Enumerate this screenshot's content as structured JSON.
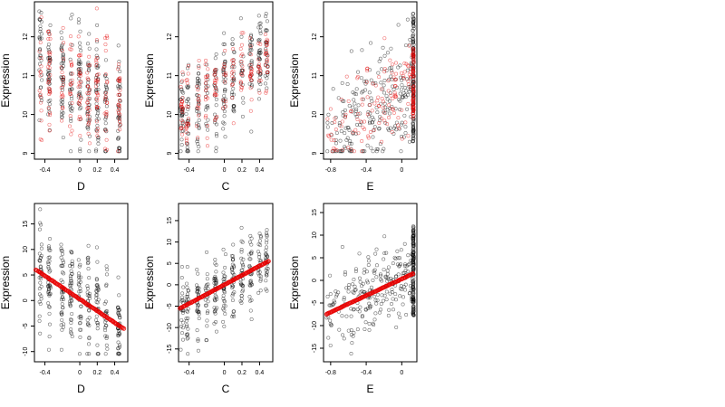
{
  "chart_data": [
    {
      "type": "scatter",
      "xlabel": "D",
      "ylabel": "Expression",
      "xlim": [
        -0.52,
        0.55
      ],
      "ylim": [
        8.85,
        12.9
      ],
      "xticks": [
        -0.4,
        0.0,
        0.2,
        0.4
      ],
      "yticks": [
        9,
        10,
        11,
        12
      ],
      "black_cloud": {
        "n": 300,
        "x_range": [
          -0.5,
          0.5
        ],
        "x_clusters": [
          -0.45,
          -0.35,
          -0.2,
          -0.1,
          0.0,
          0.1,
          0.2,
          0.3,
          0.45
        ],
        "line": [
          11.4,
          10.0
        ],
        "spread": 0.75
      },
      "red_cloud": {
        "n": 200,
        "x_range": [
          -0.5,
          0.5
        ],
        "x_clusters": [
          -0.45,
          -0.35,
          -0.2,
          -0.1,
          0.0,
          0.1,
          0.2,
          0.3,
          0.45
        ],
        "line": [
          11.2,
          10.1
        ],
        "spread": 0.7
      }
    },
    {
      "type": "scatter",
      "xlabel": "C",
      "ylabel": "Expression",
      "xlim": [
        -0.52,
        0.55
      ],
      "ylim": [
        8.85,
        12.9
      ],
      "xticks": [
        -0.4,
        0.0,
        0.2,
        0.4
      ],
      "yticks": [
        9,
        10,
        11,
        12
      ],
      "black_cloud": {
        "n": 300,
        "x_range": [
          -0.5,
          0.5
        ],
        "x_clusters": [
          -0.48,
          -0.42,
          -0.3,
          -0.2,
          -0.1,
          0.0,
          0.1,
          0.2,
          0.3,
          0.4,
          0.48
        ],
        "line": [
          9.9,
          11.6
        ],
        "spread": 0.6
      },
      "red_cloud": {
        "n": 180,
        "x_range": [
          -0.5,
          0.5
        ],
        "x_clusters": [
          -0.48,
          -0.42,
          -0.3,
          -0.2,
          -0.1,
          0.0,
          0.1,
          0.2,
          0.3,
          0.4,
          0.48
        ],
        "line": [
          10.1,
          11.4
        ],
        "spread": 0.5
      }
    },
    {
      "type": "scatter",
      "xlabel": "E",
      "ylabel": "Expression",
      "xlim": [
        -0.88,
        0.17
      ],
      "ylim": [
        8.85,
        12.9
      ],
      "xticks": [
        -0.8,
        -0.4,
        0.0
      ],
      "yticks": [
        9,
        10,
        11,
        12
      ],
      "black_cloud": {
        "n": 220,
        "x_range": [
          -0.85,
          0.13
        ],
        "x_clusters": [],
        "line": [
          9.4,
          10.8
        ],
        "spread": 0.7,
        "dense_column": {
          "x": 0.13,
          "y_range": [
            9.3,
            12.6
          ],
          "n": 120
        }
      },
      "red_cloud": {
        "n": 130,
        "x_range": [
          -0.85,
          0.13
        ],
        "x_clusters": [],
        "line": [
          9.6,
          10.9
        ],
        "spread": 0.55,
        "dense_column": {
          "x": 0.13,
          "y_range": [
            9.9,
            11.7
          ],
          "n": 80
        }
      }
    },
    {
      "type": "scatter",
      "xlabel": "D",
      "ylabel": "Expression",
      "xlim": [
        -0.52,
        0.55
      ],
      "ylim": [
        -12,
        19
      ],
      "xticks": [
        -0.4,
        0.0,
        0.2,
        0.4
      ],
      "yticks": [
        -10,
        -5,
        0,
        5,
        10,
        15
      ],
      "black_cloud": {
        "n": 320,
        "x_range": [
          -0.5,
          0.5
        ],
        "x_clusters": [
          -0.45,
          -0.35,
          -0.2,
          -0.1,
          0.0,
          0.1,
          0.2,
          0.3,
          0.45
        ],
        "line": [
          5.5,
          -5.5
        ],
        "spread": 4.5
      },
      "fit_line": {
        "x": [
          -0.5,
          0.5
        ],
        "y": [
          6.0,
          -5.5
        ]
      }
    },
    {
      "type": "scatter",
      "xlabel": "C",
      "ylabel": "Expression",
      "xlim": [
        -0.52,
        0.55
      ],
      "ylim": [
        -18,
        19
      ],
      "xticks": [
        -0.4,
        0.0,
        0.2,
        0.4
      ],
      "yticks": [
        -15,
        -10,
        -5,
        0,
        5,
        10,
        15
      ],
      "black_cloud": {
        "n": 320,
        "x_range": [
          -0.5,
          0.5
        ],
        "x_clusters": [
          -0.48,
          -0.42,
          -0.3,
          -0.2,
          -0.1,
          0.0,
          0.1,
          0.2,
          0.3,
          0.4,
          0.48
        ],
        "line": [
          -5.5,
          5.5
        ],
        "spread": 4.5
      },
      "fit_line": {
        "x": [
          -0.5,
          0.5
        ],
        "y": [
          -5.5,
          5.5
        ]
      }
    },
    {
      "type": "scatter",
      "xlabel": "E",
      "ylabel": "Expression",
      "xlim": [
        -0.88,
        0.17
      ],
      "ylim": [
        -18,
        17
      ],
      "xticks": [
        -0.8,
        -0.4,
        0.0
      ],
      "yticks": [
        -15,
        -10,
        -5,
        0,
        5,
        10,
        15
      ],
      "black_cloud": {
        "n": 230,
        "x_range": [
          -0.85,
          0.13
        ],
        "x_clusters": [],
        "line": [
          -7.5,
          1.5
        ],
        "spread": 4.0,
        "dense_column": {
          "x": 0.13,
          "y_range": [
            -8,
            12
          ],
          "n": 140
        }
      },
      "fit_line": {
        "x": [
          -0.85,
          0.13
        ],
        "y": [
          -7.5,
          1.5
        ]
      }
    }
  ]
}
